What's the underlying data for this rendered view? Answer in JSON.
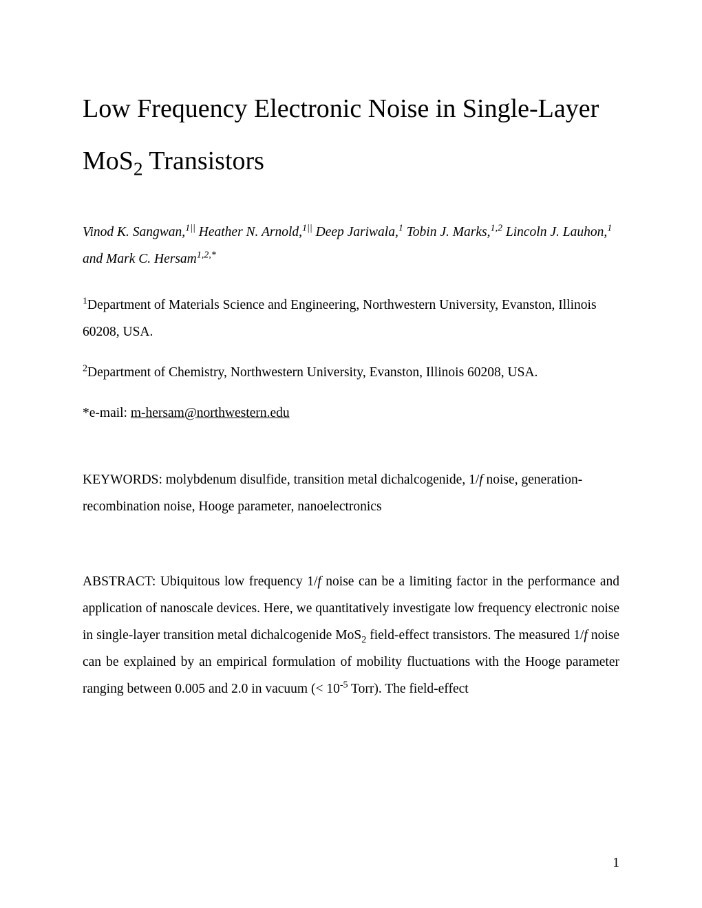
{
  "title_line1": "Low Frequency Electronic Noise in Single-Layer",
  "title_line2_pre": "MoS",
  "title_line2_sub": "2",
  "title_line2_post": " Transistors",
  "authors": {
    "a1_name": "Vinod K. Sangwan,",
    "a1_sup": "1||",
    "a2_name": " Heather N. Arnold,",
    "a2_sup": "1||",
    "a3_name": " Deep Jariwala,",
    "a3_sup": "1",
    "a4_name": " Tobin J. Marks,",
    "a4_sup": "1,2",
    "a5_name": " Lincoln J. Lauhon,",
    "a5_sup": "1",
    "a6_name": " and Mark C. Hersam",
    "a6_sup": "1,2,*"
  },
  "affil1_sup": "1",
  "affil1_text": "Department of Materials Science and Engineering, Northwestern University, Evanston, Illinois 60208, USA.",
  "affil2_sup": "2",
  "affil2_text": "Department of Chemistry, Northwestern University, Evanston, Illinois 60208, USA.",
  "email_prefix": "*e-mail: ",
  "email": "m-hersam@northwestern.edu",
  "keywords_label": "KEYWORDS: ",
  "keywords_pre": "molybdenum disulfide, transition metal dichalcogenide, 1/",
  "keywords_f": "f",
  "keywords_post": " noise, generation-recombination noise, Hooge parameter, nanoelectronics",
  "abstract": {
    "label": "ABSTRACT:  ",
    "s1a": "Ubiquitous low frequency 1/",
    "s1f": "f",
    "s1b": " noise can be a limiting factor in the performance and application of nanoscale devices.  Here, we quantitatively investigate low frequency electronic noise in single-layer transition metal dichalcogenide MoS",
    "s1sub": "2",
    "s1c": " field-effect transistors.  The measured 1/",
    "s2f": "f",
    "s2a": " noise can be explained by an empirical formulation of mobility fluctuations with the Hooge parameter ranging between 0.005 and 2.0 in vacuum (< 10",
    "s2sup": "-5",
    "s2b": " Torr).   The field-effect"
  },
  "page_number": "1"
}
